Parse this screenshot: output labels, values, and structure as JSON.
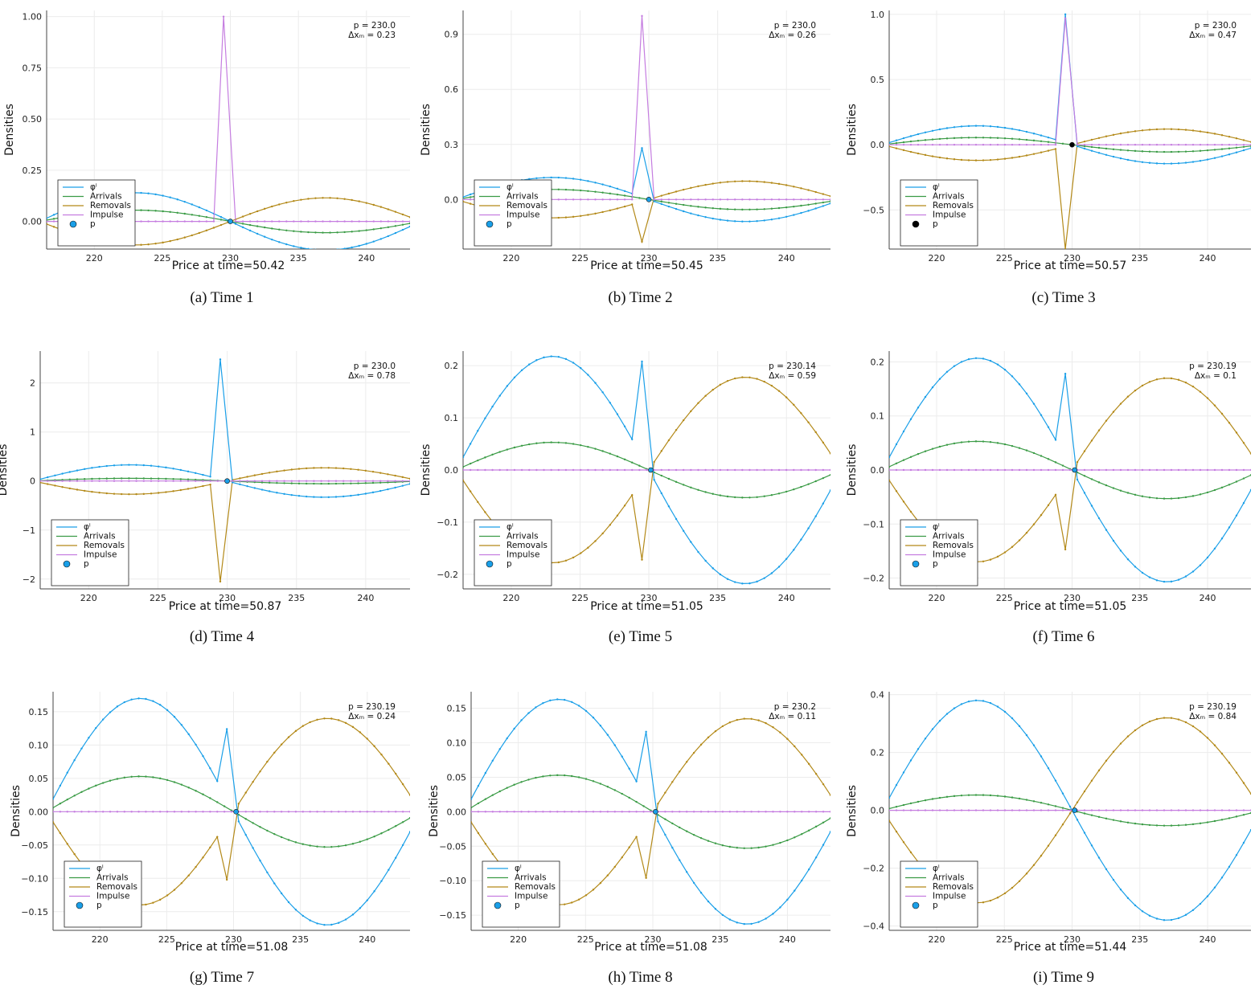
{
  "colors": {
    "phi": "#1a9fe8",
    "arrivals": "#3a9b45",
    "removals": "#b38918",
    "impulse": "#c57de0",
    "marker_default": "#1a9fe8",
    "marker_black": "#000000",
    "grid": "#ececec",
    "axis": "#444444"
  },
  "legend_labels": [
    "φⁱ",
    "Arrivals",
    "Removals",
    "Impulse",
    "p"
  ],
  "chart_data": [
    {
      "type": "line",
      "caption": "(a) Time 1",
      "xlabel": "Price at time=50.42",
      "ylabel": "Densities",
      "ann_p": "p   = 230.0",
      "ann_dx": "Δxₘ =   0.23",
      "xlim": [
        216.5,
        243.2
      ],
      "xticks": [
        220,
        225,
        230,
        235,
        240
      ],
      "ylim": [
        -0.135,
        1.03
      ],
      "yticks": [
        0,
        0.25,
        0.5,
        0.75,
        1.0
      ],
      "ytick_labels": [
        "0.00",
        "0.25",
        "0.50",
        "0.75",
        "1.00"
      ],
      "legend_position": "bottom-left",
      "amp": {
        "phi": 0.14,
        "arrivals": 0.055,
        "removals": 0.115
      },
      "spike": {
        "x": 229.5,
        "phi": 0.0,
        "removals": 0.0,
        "impulse": 1.0
      },
      "price": 230.0,
      "marker": "blue"
    },
    {
      "type": "line",
      "caption": "(b) Time 2",
      "xlabel": "Price at time=50.45",
      "ylabel": "Densities",
      "ann_p": "p   = 230.0",
      "ann_dx": "Δxₘ =   0.26",
      "xlim": [
        216.5,
        243.2
      ],
      "xticks": [
        220,
        225,
        230,
        235,
        240
      ],
      "ylim": [
        -0.27,
        1.03
      ],
      "yticks": [
        0,
        0.3,
        0.6,
        0.9
      ],
      "ytick_labels": [
        "0.0",
        "0.3",
        "0.6",
        "0.9"
      ],
      "legend_position": "bottom-left",
      "amp": {
        "phi": 0.12,
        "arrivals": 0.055,
        "removals": 0.1
      },
      "spike": {
        "x": 229.5,
        "phi": 0.28,
        "removals": -0.23,
        "impulse": 1.0
      },
      "price": 230.0,
      "marker": "blue"
    },
    {
      "type": "line",
      "caption": "(c) Time 3",
      "xlabel": "Price at time=50.57",
      "ylabel": "Densities",
      "ann_p": "p   = 230.0",
      "ann_dx": "Δxₘ =   0.47",
      "xlim": [
        216.5,
        243.2
      ],
      "xticks": [
        220,
        225,
        230,
        235,
        240
      ],
      "ylim": [
        -0.8,
        1.03
      ],
      "yticks": [
        -0.5,
        0,
        0.5,
        1.0
      ],
      "ytick_labels": [
        "−0.5",
        "0.0",
        "0.5",
        "1.0"
      ],
      "legend_position": "bottom-left",
      "amp": {
        "phi": 0.145,
        "arrivals": 0.055,
        "removals": 0.12
      },
      "spike": {
        "x": 229.5,
        "phi": 1.0,
        "removals": -0.8,
        "impulse": 0.97
      },
      "price": 230.0,
      "marker": "black"
    },
    {
      "type": "line",
      "caption": "(d) Time 4",
      "xlabel": "Price at time=50.87",
      "ylabel": "Densities",
      "ann_p": "p   = 230.0",
      "ann_dx": "Δxₘ =   0.78",
      "xlim": [
        216.5,
        243.2
      ],
      "xticks": [
        220,
        225,
        230,
        235,
        240
      ],
      "ylim": [
        -2.2,
        2.65
      ],
      "yticks": [
        -2,
        -1,
        0,
        1,
        2
      ],
      "ytick_labels": [
        "−2",
        "−1",
        "0",
        "1",
        "2"
      ],
      "legend_position": "bottom-left",
      "amp": {
        "phi": 0.33,
        "arrivals": 0.055,
        "removals": 0.27
      },
      "spike": {
        "x": 229.5,
        "phi": 2.48,
        "removals": -2.05,
        "impulse": 0.0
      },
      "price": 230.0,
      "marker": "blue"
    },
    {
      "type": "line",
      "caption": "(e) Time 5",
      "xlabel": "Price at time=51.05",
      "ylabel": "Densities",
      "ann_p": "p   = 230.14",
      "ann_dx": "Δxₘ =   0.59",
      "xlim": [
        216.5,
        243.2
      ],
      "xticks": [
        220,
        225,
        230,
        235,
        240
      ],
      "ylim": [
        -0.228,
        0.228
      ],
      "yticks": [
        -0.2,
        -0.1,
        0,
        0.1,
        0.2
      ],
      "ytick_labels": [
        "−0.2",
        "−0.1",
        "0.0",
        "0.1",
        "0.2"
      ],
      "legend_position": "bottom-left",
      "amp": {
        "phi": 0.218,
        "arrivals": 0.053,
        "removals": 0.178
      },
      "spike": {
        "x": 229.5,
        "phi": 0.208,
        "removals": -0.172,
        "impulse": 0.0
      },
      "price": 230.14,
      "marker": "blue"
    },
    {
      "type": "line",
      "caption": "(f) Time 6",
      "xlabel": "Price at time=51.05",
      "ylabel": "Densities",
      "ann_p": "p   = 230.19",
      "ann_dx": "Δxₘ =   0.1",
      "xlim": [
        216.5,
        243.2
      ],
      "xticks": [
        220,
        225,
        230,
        235,
        240
      ],
      "ylim": [
        -0.22,
        0.22
      ],
      "yticks": [
        -0.2,
        -0.1,
        0,
        0.1,
        0.2
      ],
      "ytick_labels": [
        "−0.2",
        "−0.1",
        "0.0",
        "0.1",
        "0.2"
      ],
      "legend_position": "bottom-left",
      "amp": {
        "phi": 0.207,
        "arrivals": 0.053,
        "removals": 0.17
      },
      "spike": {
        "x": 229.5,
        "phi": 0.178,
        "removals": -0.147,
        "impulse": 0.0
      },
      "price": 230.19,
      "marker": "blue"
    },
    {
      "type": "line",
      "caption": "(g) Time 7",
      "xlabel": "Price at time=51.08",
      "ylabel": "Densities",
      "ann_p": "p   = 230.19",
      "ann_dx": "Δxₘ =   0.24",
      "xlim": [
        216.5,
        243.2
      ],
      "xticks": [
        220,
        225,
        230,
        235,
        240
      ],
      "ylim": [
        -0.178,
        0.18
      ],
      "yticks": [
        -0.15,
        -0.1,
        -0.05,
        0,
        0.05,
        0.1,
        0.15
      ],
      "ytick_labels": [
        "−0.15",
        "−0.10",
        "−0.05",
        "0.00",
        "0.05",
        "0.10",
        "0.15"
      ],
      "legend_position": "bottom-left",
      "amp": {
        "phi": 0.17,
        "arrivals": 0.053,
        "removals": 0.14
      },
      "spike": {
        "x": 229.5,
        "phi": 0.124,
        "removals": -0.102,
        "impulse": 0.0
      },
      "price": 230.19,
      "marker": "blue"
    },
    {
      "type": "line",
      "caption": "(h) Time 8",
      "xlabel": "Price at time=51.08",
      "ylabel": "Densities",
      "ann_p": "p   = 230.2",
      "ann_dx": "Δxₘ =   0.11",
      "xlim": [
        216.5,
        243.2
      ],
      "xticks": [
        220,
        225,
        230,
        235,
        240
      ],
      "ylim": [
        -0.172,
        0.174
      ],
      "yticks": [
        -0.15,
        -0.1,
        -0.05,
        0,
        0.05,
        0.1,
        0.15
      ],
      "ytick_labels": [
        "−0.15",
        "−0.10",
        "−0.05",
        "0.00",
        "0.05",
        "0.10",
        "0.15"
      ],
      "legend_position": "bottom-left",
      "amp": {
        "phi": 0.163,
        "arrivals": 0.053,
        "removals": 0.135
      },
      "spike": {
        "x": 229.5,
        "phi": 0.116,
        "removals": -0.096,
        "impulse": 0.0
      },
      "price": 230.2,
      "marker": "blue"
    },
    {
      "type": "line",
      "caption": "(i) Time 9",
      "xlabel": "Price at time=51.44",
      "ylabel": "Densities",
      "ann_p": "p   = 230.19",
      "ann_dx": "Δxₘ =   0.84",
      "xlim": [
        216.5,
        243.2
      ],
      "xticks": [
        220,
        225,
        230,
        235,
        240
      ],
      "ylim": [
        -0.415,
        0.41
      ],
      "yticks": [
        -0.4,
        -0.2,
        0,
        0.2,
        0.4
      ],
      "ytick_labels": [
        "−0.4",
        "−0.2",
        "0.0",
        "0.2",
        "0.4"
      ],
      "legend_position": "bottom-left",
      "amp": {
        "phi": 0.38,
        "arrivals": 0.053,
        "removals": 0.32
      },
      "spike": null,
      "price": 230.19,
      "marker": "blue"
    }
  ]
}
